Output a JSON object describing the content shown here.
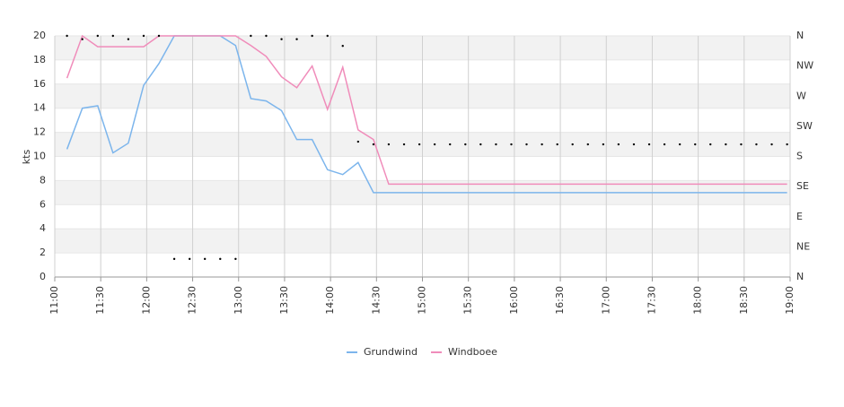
{
  "chart_data": {
    "type": "line",
    "y_label": "kts",
    "x": [
      11.133,
      11.3,
      11.467,
      11.633,
      11.8,
      11.967,
      12.133,
      12.3,
      12.467,
      12.633,
      12.8,
      12.967,
      13.133,
      13.3,
      13.467,
      13.633,
      13.8,
      13.967,
      14.133,
      14.3,
      14.467,
      14.633,
      14.8,
      14.967,
      15.133,
      15.3,
      15.467,
      15.633,
      15.8,
      15.967,
      16.133,
      16.3,
      16.467,
      16.633,
      16.8,
      16.967,
      17.133,
      17.3,
      17.467,
      17.633,
      17.8,
      17.967,
      18.133,
      18.3,
      18.467,
      18.633,
      18.8,
      18.967
    ],
    "series": [
      {
        "name": "Grundwind",
        "color": "#7cb5ec",
        "values": [
          10.6,
          14,
          14.2,
          10.3,
          11.1,
          15.9,
          17.7,
          20,
          20,
          20,
          20,
          19.2,
          14.8,
          14.6,
          13.8,
          11.4,
          11.4,
          8.9,
          8.5,
          9.5,
          7,
          7,
          7,
          7,
          7,
          7,
          7,
          7,
          7,
          7,
          7,
          7,
          7,
          7,
          7,
          7,
          7,
          7,
          7,
          7,
          7,
          7,
          7,
          7,
          7,
          7,
          7,
          7
        ]
      },
      {
        "name": "Windboee",
        "color": "#f08cba",
        "values": [
          16.5,
          20,
          19.1,
          19.1,
          19.1,
          19.1,
          20,
          20,
          20,
          20,
          20,
          20,
          19.2,
          18.3,
          16.6,
          15.7,
          17.5,
          13.9,
          17.4,
          12.2,
          11.4,
          7.7,
          7.7,
          7.7,
          7.7,
          7.7,
          7.7,
          7.7,
          7.7,
          7.7,
          7.7,
          7.7,
          7.7,
          7.7,
          7.7,
          7.7,
          7.7,
          7.7,
          7.7,
          7.7,
          7.7,
          7.7,
          7.7,
          7.7,
          7.7,
          7.7,
          7.7,
          7.7
        ]
      }
    ],
    "direction": {
      "axis": "y2",
      "color": "#000000",
      "values": [
        360,
        355,
        360,
        360,
        355,
        360,
        360,
        27,
        27,
        27,
        27,
        27,
        360,
        360,
        355,
        355,
        360,
        360,
        345,
        202,
        198,
        198,
        198,
        198,
        198,
        198,
        198,
        198,
        198,
        198,
        198,
        198,
        198,
        198,
        198,
        198,
        198,
        198,
        198,
        198,
        198,
        198,
        198,
        198,
        198,
        198,
        198,
        198
      ]
    },
    "xlim": [
      11,
      19
    ],
    "xticks": [
      {
        "value": 11,
        "label": "11:00"
      },
      {
        "value": 11.5,
        "label": "11:30"
      },
      {
        "value": 12,
        "label": "12:00"
      },
      {
        "value": 12.5,
        "label": "12:30"
      },
      {
        "value": 13,
        "label": "13:00"
      },
      {
        "value": 13.5,
        "label": "13:30"
      },
      {
        "value": 14,
        "label": "14:00"
      },
      {
        "value": 14.5,
        "label": "14:30"
      },
      {
        "value": 15,
        "label": "15:00"
      },
      {
        "value": 15.5,
        "label": "15:30"
      },
      {
        "value": 16,
        "label": "16:00"
      },
      {
        "value": 16.5,
        "label": "16:30"
      },
      {
        "value": 17,
        "label": "17:00"
      },
      {
        "value": 17.5,
        "label": "17:30"
      },
      {
        "value": 18,
        "label": "18:00"
      },
      {
        "value": 18.5,
        "label": "18:30"
      },
      {
        "value": 19,
        "label": "19:00"
      }
    ],
    "ylim": [
      0,
      20
    ],
    "yticks": [
      0,
      2,
      4,
      6,
      8,
      10,
      12,
      14,
      16,
      18,
      20
    ],
    "y2lim": [
      0,
      360
    ],
    "y2ticks": [
      {
        "value": 0,
        "label": "N"
      },
      {
        "value": 45,
        "label": "NE"
      },
      {
        "value": 90,
        "label": "E"
      },
      {
        "value": 135,
        "label": "SE"
      },
      {
        "value": 180,
        "label": "S"
      },
      {
        "value": 225,
        "label": "SW"
      },
      {
        "value": 270,
        "label": "W"
      },
      {
        "value": 315,
        "label": "NW"
      },
      {
        "value": 360,
        "label": "N"
      }
    ],
    "grid": true,
    "bands": true,
    "legend": "bottom"
  }
}
